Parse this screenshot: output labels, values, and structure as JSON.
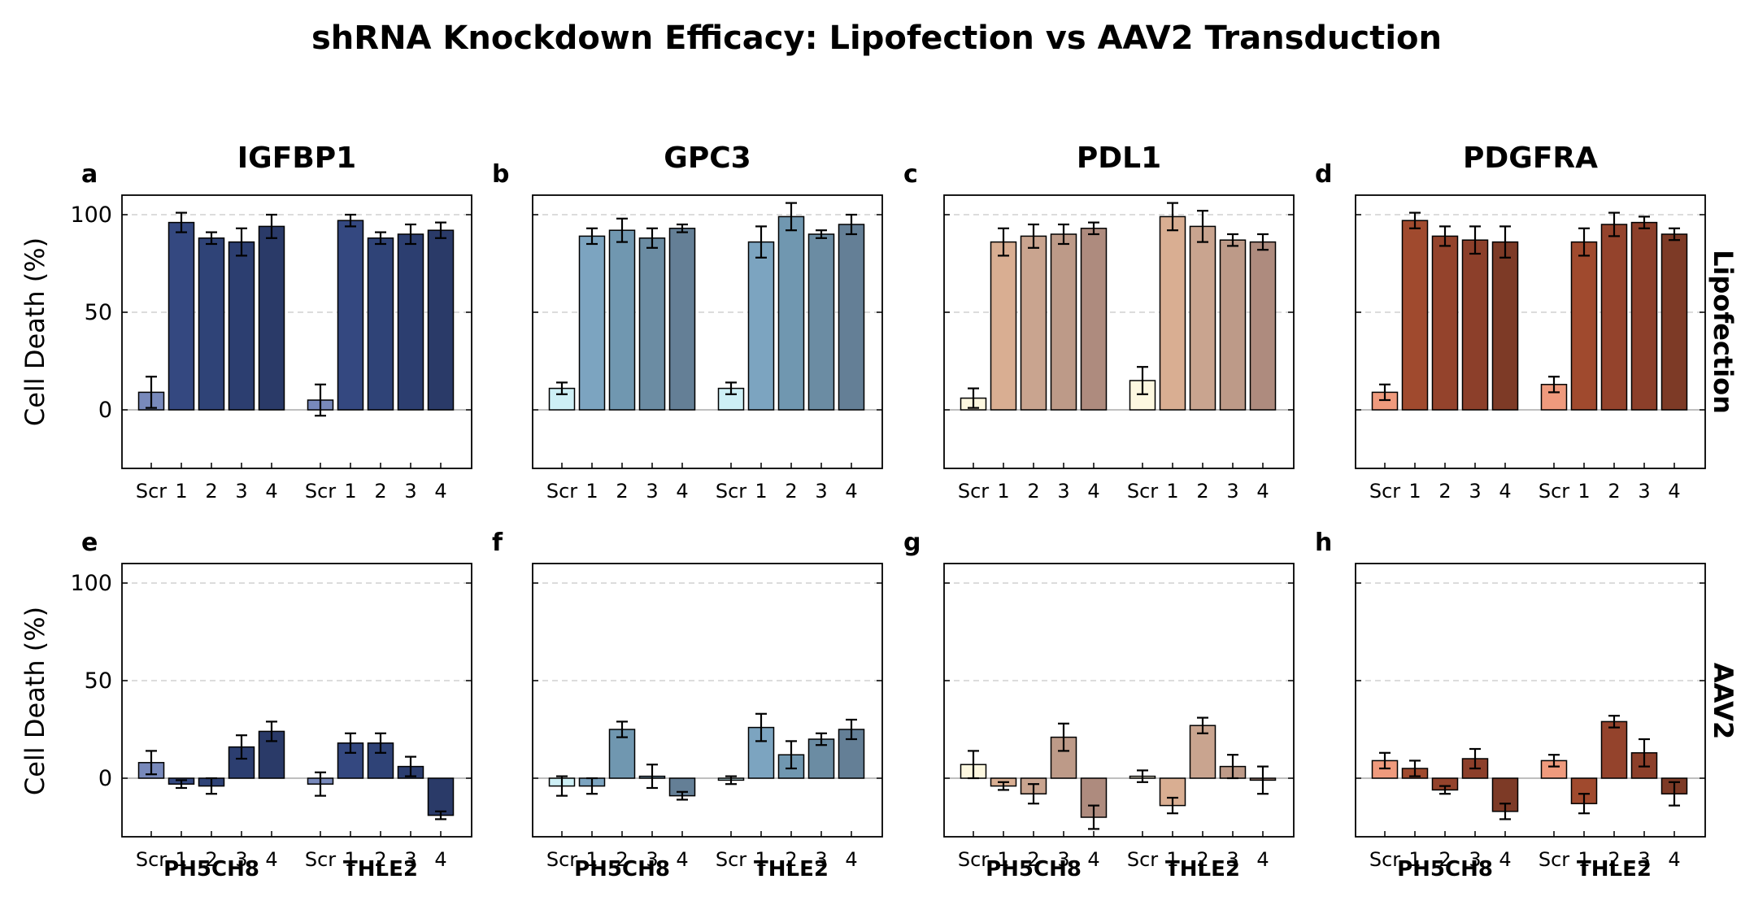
{
  "title": "shRNA Knockdown Efficacy: Lipofection vs AAV2 Transduction",
  "ylabel": "Cell Death (%)",
  "row_labels": [
    "Lipofection",
    "AAV2"
  ],
  "x_tick_labels": [
    "Scr",
    "1",
    "2",
    "3",
    "4"
  ],
  "groups": [
    "PH5CH8",
    "THLE2"
  ],
  "chart_data": {
    "type": "bar",
    "ylim": [
      -30,
      110
    ],
    "yticks": [
      0,
      50,
      100
    ],
    "grid": "dashed horizontal",
    "error_bars": true,
    "panels": [
      {
        "letter": "a",
        "title": "IGFBP1",
        "row": "Lipofection",
        "colors": [
          "#7889bb",
          "#344880",
          "#2f4377",
          "#2c3e70",
          "#2a3a68"
        ],
        "series": [
          {
            "group": "PH5CH8",
            "values": [
              9,
              96,
              88,
              86,
              94
            ],
            "errors": [
              8,
              5,
              3,
              7,
              6
            ]
          },
          {
            "group": "THLE2",
            "values": [
              5,
              97,
              88,
              90,
              92
            ],
            "errors": [
              8,
              3,
              3,
              5,
              4
            ]
          }
        ]
      },
      {
        "letter": "b",
        "title": "GPC3",
        "row": "Lipofection",
        "colors": [
          "#cdeff5",
          "#7ca4c0",
          "#7097b0",
          "#6b8ca3",
          "#647f96"
        ],
        "series": [
          {
            "group": "PH5CH8",
            "values": [
              11,
              89,
              92,
              88,
              93
            ],
            "errors": [
              3,
              4,
              6,
              5,
              2
            ]
          },
          {
            "group": "THLE2",
            "values": [
              11,
              86,
              99,
              90,
              95
            ],
            "errors": [
              3,
              8,
              7,
              2,
              5
            ]
          }
        ]
      },
      {
        "letter": "c",
        "title": "PDL1",
        "row": "Lipofection",
        "colors": [
          "#fdf8e0",
          "#d9ae92",
          "#c9a48f",
          "#bd9a88",
          "#ae8b7e"
        ],
        "series": [
          {
            "group": "PH5CH8",
            "values": [
              6,
              86,
              89,
              90,
              93
            ],
            "errors": [
              5,
              7,
              6,
              5,
              3
            ]
          },
          {
            "group": "THLE2",
            "values": [
              15,
              99,
              94,
              87,
              86
            ],
            "errors": [
              7,
              7,
              8,
              3,
              4
            ]
          }
        ]
      },
      {
        "letter": "d",
        "title": "PDGFRA",
        "row": "Lipofection",
        "colors": [
          "#ef9a7d",
          "#a04a2e",
          "#94432c",
          "#8c3f2a",
          "#7d3a26"
        ],
        "series": [
          {
            "group": "PH5CH8",
            "values": [
              9,
              97,
              89,
              87,
              86
            ],
            "errors": [
              4,
              4,
              5,
              7,
              8
            ]
          },
          {
            "group": "THLE2",
            "values": [
              13,
              86,
              95,
              96,
              90
            ],
            "errors": [
              4,
              7,
              6,
              3,
              3
            ]
          }
        ]
      },
      {
        "letter": "e",
        "title": "",
        "row": "AAV2",
        "colors": [
          "#7889bb",
          "#344880",
          "#2f4377",
          "#2c3e70",
          "#2a3a68"
        ],
        "series": [
          {
            "group": "PH5CH8",
            "values": [
              8,
              -3,
              -4,
              16,
              24
            ],
            "errors": [
              6,
              2,
              4,
              6,
              5
            ]
          },
          {
            "group": "THLE2",
            "values": [
              -3,
              18,
              18,
              6,
              -19
            ],
            "errors": [
              6,
              5,
              5,
              5,
              2
            ]
          }
        ]
      },
      {
        "letter": "f",
        "title": "",
        "row": "AAV2",
        "colors": [
          "#cdeff5",
          "#7ca4c0",
          "#7097b0",
          "#6b8ca3",
          "#647f96"
        ],
        "series": [
          {
            "group": "PH5CH8",
            "values": [
              -4,
              -4,
              25,
              1,
              -9
            ],
            "errors": [
              5,
              4,
              4,
              6,
              2
            ]
          },
          {
            "group": "THLE2",
            "values": [
              -1,
              26,
              12,
              20,
              25
            ],
            "errors": [
              2,
              7,
              7,
              3,
              5
            ]
          }
        ]
      },
      {
        "letter": "g",
        "title": "",
        "row": "AAV2",
        "colors": [
          "#fdf8e0",
          "#d9ae92",
          "#c9a48f",
          "#bd9a88",
          "#ae8b7e"
        ],
        "series": [
          {
            "group": "PH5CH8",
            "values": [
              7,
              -4,
              -8,
              21,
              -20
            ],
            "errors": [
              7,
              2,
              5,
              7,
              6
            ]
          },
          {
            "group": "THLE2",
            "values": [
              1,
              -14,
              27,
              6,
              -1
            ],
            "errors": [
              3,
              4,
              4,
              6,
              7
            ]
          }
        ]
      },
      {
        "letter": "h",
        "title": "",
        "row": "AAV2",
        "colors": [
          "#ef9a7d",
          "#a04a2e",
          "#94432c",
          "#8c3f2a",
          "#7d3a26"
        ],
        "series": [
          {
            "group": "PH5CH8",
            "values": [
              9,
              5,
              -6,
              10,
              -17
            ],
            "errors": [
              4,
              4,
              2,
              5,
              4
            ]
          },
          {
            "group": "THLE2",
            "values": [
              9,
              -13,
              29,
              13,
              -8
            ],
            "errors": [
              3,
              5,
              3,
              7,
              6
            ]
          }
        ]
      }
    ]
  }
}
